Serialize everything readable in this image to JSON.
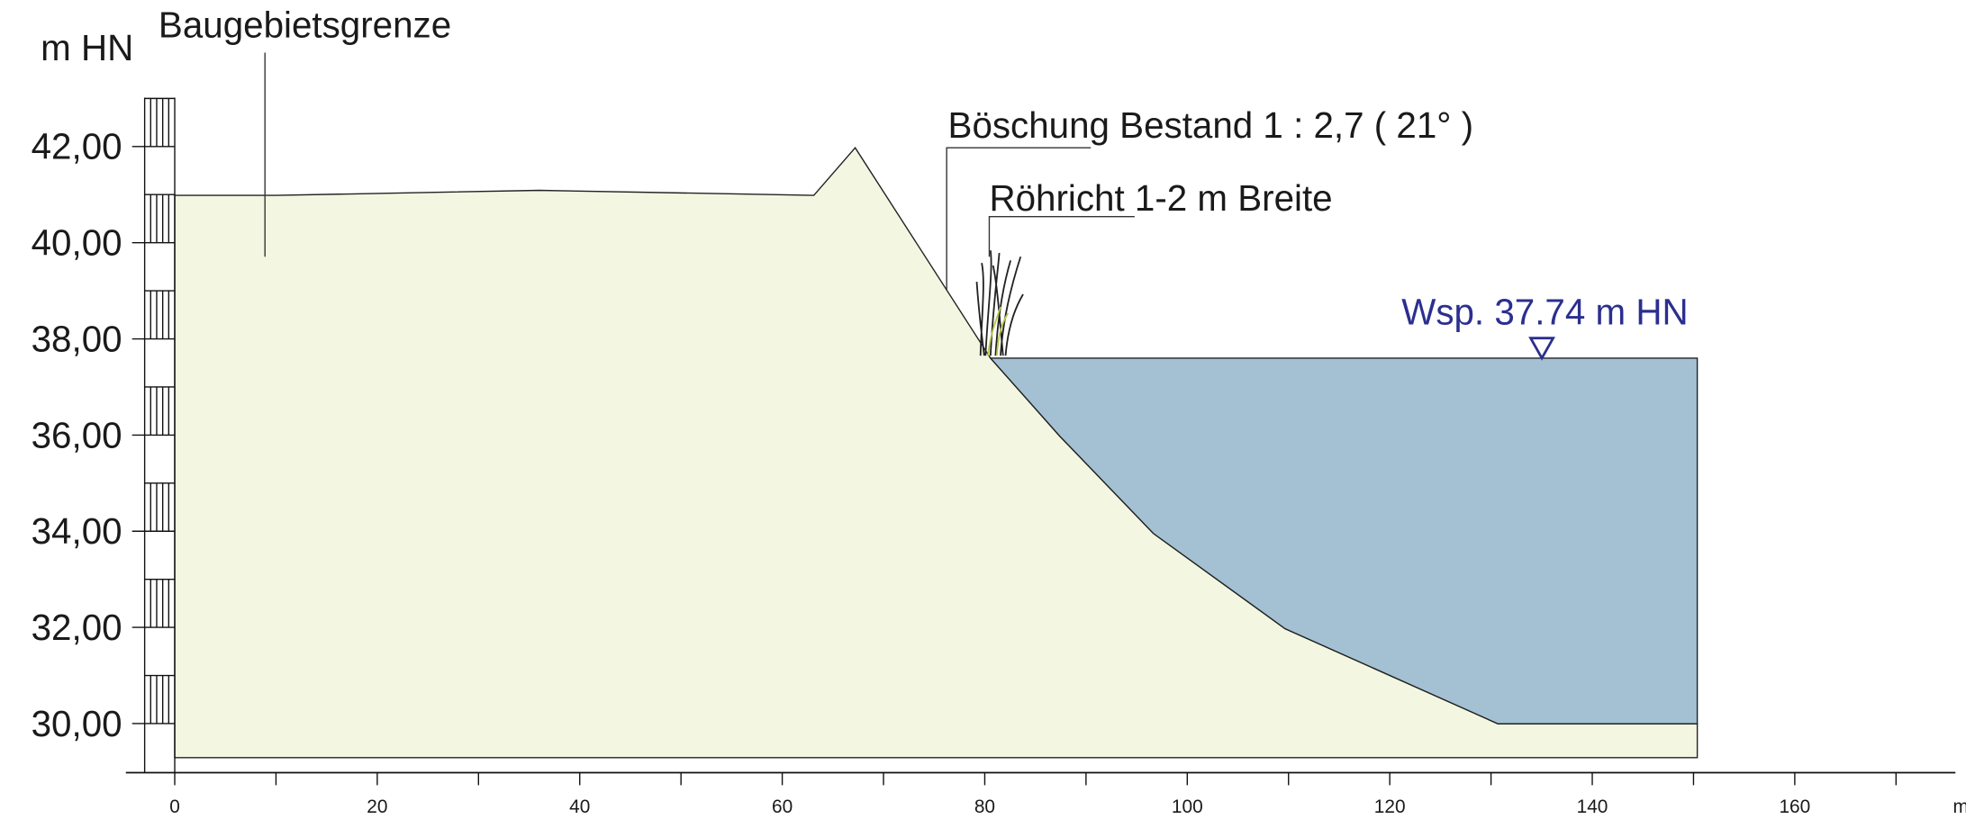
{
  "y_unit": "m HN",
  "annotations": {
    "boundary": "Baugebietsgrenze",
    "slope": "Böschung Bestand 1 : 2,7 ( 21° )",
    "reed": "Röhricht 1-2 m Breite",
    "water_level": "Wsp. 37.74 m HN"
  },
  "y_tick_labels": [
    "42,00",
    "40,00",
    "38,00",
    "36,00",
    "34,00",
    "32,00",
    "30,00"
  ],
  "x_tick_labels": [
    "0",
    "20",
    "40",
    "60",
    "80",
    "100",
    "120",
    "140",
    "160"
  ],
  "x_unit": "m"
}
